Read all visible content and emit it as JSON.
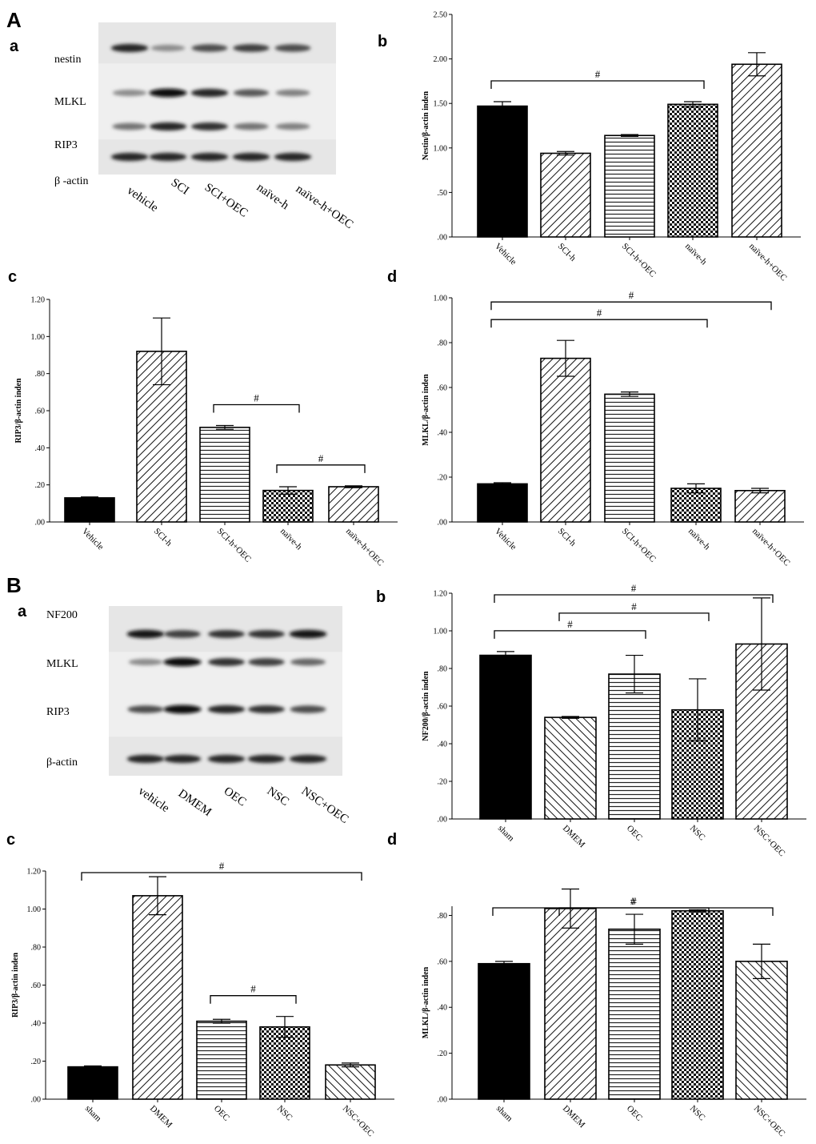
{
  "panel_labels": {
    "A": "A",
    "B": "B"
  },
  "blots": [
    {
      "id": "Aa",
      "sub_label": "a",
      "proteins": [
        "nestin",
        "MLKL",
        "RIP3",
        "β -actin"
      ],
      "lanes": [
        "vehicle",
        "SCI",
        "SCI+OEC",
        "naïve-h",
        "naïve-h+OEC"
      ],
      "band_intensity": [
        [
          0.85,
          0.45,
          0.7,
          0.75,
          0.7
        ],
        [
          0.45,
          0.95,
          0.85,
          0.65,
          0.5
        ],
        [
          0.55,
          0.85,
          0.8,
          0.55,
          0.5
        ],
        [
          0.85,
          0.85,
          0.85,
          0.85,
          0.85
        ]
      ]
    },
    {
      "id": "Ba",
      "sub_label": "a",
      "proteins": [
        "NF200",
        "MLKL",
        "RIP3",
        "β-actin"
      ],
      "lanes": [
        "vehicle",
        "DMEM",
        "OEC",
        "NSC",
        "NSC+OEC"
      ],
      "band_intensity": [
        [
          0.9,
          0.75,
          0.8,
          0.8,
          0.9
        ],
        [
          0.45,
          0.95,
          0.8,
          0.75,
          0.6
        ],
        [
          0.7,
          0.95,
          0.85,
          0.8,
          0.7
        ],
        [
          0.85,
          0.85,
          0.85,
          0.85,
          0.85
        ]
      ]
    }
  ],
  "chart_data": [
    {
      "id": "Ab",
      "sub_label": "b",
      "type": "bar",
      "ylabel": "Nestin/β-actin inden",
      "categories": [
        "Vehicle",
        "SCI-h",
        "SCI-h+OEC",
        "naïve-h",
        "naïve-h+OEC"
      ],
      "values": [
        1.47,
        0.94,
        1.14,
        1.49,
        1.94
      ],
      "errors": [
        0.05,
        0.02,
        0.01,
        0.03,
        0.13
      ],
      "patterns": [
        "solid",
        "diag",
        "horiz",
        "check",
        "diag"
      ],
      "ylim": [
        0,
        2.5
      ],
      "yticks": [
        ".00",
        ".50",
        "1.00",
        "1.50",
        "2.00",
        "2.50"
      ],
      "significance": [
        {
          "from": 0,
          "to": 3,
          "label": "#"
        }
      ]
    },
    {
      "id": "Ac",
      "sub_label": "c",
      "type": "bar",
      "ylabel": "RIP3/β-actin inden",
      "categories": [
        "Vehicle",
        "SCI-h",
        "SCI-h+OEC",
        "naïve-h",
        "naïve-h+OEC"
      ],
      "values": [
        0.13,
        0.92,
        0.51,
        0.17,
        0.19
      ],
      "errors": [
        0.005,
        0.18,
        0.01,
        0.02,
        0.005
      ],
      "patterns": [
        "solid",
        "diag",
        "horiz",
        "check",
        "diag"
      ],
      "ylim": [
        0,
        1.2
      ],
      "yticks": [
        ".00",
        ".20",
        ".40",
        ".60",
        ".80",
        "1.00",
        "1.20"
      ],
      "significance": [
        {
          "from": 2,
          "to": 3,
          "label": "#"
        },
        {
          "from": 3,
          "to": 4,
          "label": "#"
        }
      ]
    },
    {
      "id": "Ad",
      "sub_label": "d",
      "type": "bar",
      "ylabel": "MLKL/β-actin inden",
      "categories": [
        "Vehicle",
        "SCI-h",
        "SCI-h+OEC",
        "naïve-h",
        "naïve-h+OEC"
      ],
      "values": [
        0.17,
        0.73,
        0.57,
        0.15,
        0.14
      ],
      "errors": [
        0.005,
        0.08,
        0.01,
        0.02,
        0.01
      ],
      "patterns": [
        "solid",
        "diag",
        "horiz",
        "check",
        "diag"
      ],
      "ylim": [
        0,
        1.0
      ],
      "yticks": [
        ".00",
        ".20",
        ".40",
        ".60",
        ".80",
        "1.00"
      ],
      "significance": [
        {
          "from": 0,
          "to": 3,
          "label": "#"
        },
        {
          "from": 0,
          "to": 4,
          "label": "#"
        }
      ]
    },
    {
      "id": "Bb",
      "sub_label": "b",
      "type": "bar",
      "ylabel": "NF200/β-actin inden",
      "categories": [
        "sham",
        "DMEM",
        "OEC",
        "NSC",
        "NSC+OEC"
      ],
      "values": [
        0.87,
        0.54,
        0.77,
        0.58,
        0.93
      ],
      "errors": [
        0.02,
        0.005,
        0.1,
        0.165,
        0.245
      ],
      "patterns": [
        "solid",
        "rdiag",
        "horiz",
        "check",
        "diag"
      ],
      "ylim": [
        0,
        1.2
      ],
      "yticks": [
        ".00",
        ".20",
        ".40",
        ".60",
        ".80",
        "1.00",
        "1.20"
      ],
      "significance": [
        {
          "from": 0,
          "to": 2,
          "label": "#"
        },
        {
          "from": 1,
          "to": 3,
          "label": "#"
        },
        {
          "from": 0,
          "to": 4,
          "label": "#"
        }
      ]
    },
    {
      "id": "Bc",
      "sub_label": "c",
      "type": "bar",
      "ylabel": "RIP3/β-actin inden",
      "categories": [
        "sham",
        "DMEM",
        "OEC",
        "NSC",
        "NSC+OEC"
      ],
      "values": [
        0.17,
        1.07,
        0.41,
        0.38,
        0.18
      ],
      "errors": [
        0.005,
        0.1,
        0.01,
        0.055,
        0.01
      ],
      "patterns": [
        "solid",
        "diag",
        "horiz",
        "check",
        "rdiag"
      ],
      "ylim": [
        0,
        1.2
      ],
      "yticks": [
        ".00",
        ".20",
        ".40",
        ".60",
        ".80",
        "1.00",
        "1.20"
      ],
      "significance": [
        {
          "from": 0,
          "to": 4,
          "label": "#"
        },
        {
          "from": 2,
          "to": 3,
          "label": "#"
        }
      ]
    },
    {
      "id": "Bd",
      "sub_label": "d",
      "type": "bar",
      "ylabel": "MLKL/β-actin inden",
      "categories": [
        "sham",
        "DMEM",
        "OEC",
        "NSC",
        "NSC+OEC"
      ],
      "values": [
        0.59,
        0.83,
        0.74,
        0.82,
        0.6
      ],
      "errors": [
        0.01,
        0.085,
        0.065,
        0.005,
        0.075
      ],
      "patterns": [
        "solid",
        "diag",
        "horiz",
        "check",
        "rdiag"
      ],
      "ylim": [
        0,
        0.84
      ],
      "yticks": [
        ".00",
        ".20",
        ".40",
        ".60",
        ".80"
      ],
      "significance": [
        {
          "from": 0,
          "to": 4,
          "label": "#"
        },
        {
          "from": 1,
          "to": 3,
          "label": "#"
        }
      ]
    }
  ]
}
